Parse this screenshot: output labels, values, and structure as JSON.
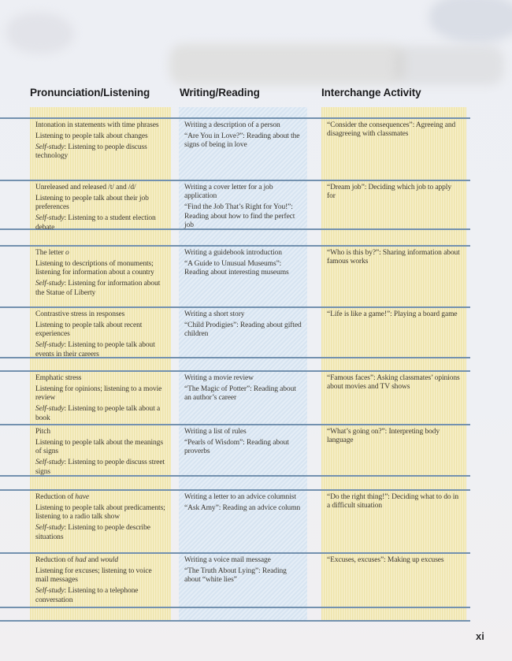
{
  "page": {
    "number_label": "xi"
  },
  "colors": {
    "rule_line": "#7391af",
    "band_yellow": "#f2e9bb",
    "band_blue": "#dde8f4",
    "background": "#eef0f4",
    "body_text": "#3b372f"
  },
  "columns": [
    {
      "header": "Pronunciation/Listening",
      "band": "yellow"
    },
    {
      "header": "Writing/Reading",
      "band": "blue"
    },
    {
      "header": "Interchange Activity",
      "band": "yellow"
    }
  ],
  "rows": [
    {
      "pron": [
        [
          {
            "t": "Intonation in statements with time phrases"
          }
        ],
        [
          {
            "t": "Listening to people talk about changes"
          }
        ],
        [
          {
            "t": "Self-study",
            "i": true
          },
          {
            "t": ": Listening to people discuss technology"
          }
        ]
      ],
      "wr": [
        [
          {
            "t": "Writing a description of a person"
          }
        ],
        [
          {
            "t": "“Are You in Love?”: Reading about the signs of being in love"
          }
        ]
      ],
      "ia": [
        [
          {
            "t": "“Consider the consequences”: Agreeing and disagreeing with classmates"
          }
        ]
      ]
    },
    {
      "pron": [
        [
          {
            "t": "Unreleased and released /t/ and /d/"
          }
        ],
        [
          {
            "t": "Listening to people talk about their job preferences"
          }
        ],
        [
          {
            "t": "Self-study",
            "i": true
          },
          {
            "t": ": Listening to a student election debate"
          }
        ]
      ],
      "wr": [
        [
          {
            "t": "Writing a cover letter for a job application"
          }
        ],
        [
          {
            "t": "“Find the Job That’s Right for You!”: Reading about how to find the perfect job"
          }
        ]
      ],
      "ia": [
        [
          {
            "t": "“Dream job”: Deciding which job to apply for"
          }
        ]
      ]
    },
    {
      "pron": [
        [
          {
            "t": "The letter "
          },
          {
            "t": "o",
            "i": true
          }
        ],
        [
          {
            "t": "Listening to descriptions of monuments; listening for information about a country"
          }
        ],
        [
          {
            "t": "Self-study",
            "i": true
          },
          {
            "t": ": Listening for information about the Statue of Liberty"
          }
        ]
      ],
      "wr": [
        [
          {
            "t": "Writing a guidebook introduction"
          }
        ],
        [
          {
            "t": "“A Guide to Unusual Museums”: Reading about interesting museums"
          }
        ]
      ],
      "ia": [
        [
          {
            "t": "“Who is this by?”: Sharing information about famous works"
          }
        ]
      ]
    },
    {
      "pron": [
        [
          {
            "t": "Contrastive stress in responses"
          }
        ],
        [
          {
            "t": "Listening to people talk about recent experiences"
          }
        ],
        [
          {
            "t": "Self-study",
            "i": true
          },
          {
            "t": ": Listening to people talk about events in their careers"
          }
        ]
      ],
      "wr": [
        [
          {
            "t": "Writing a short story"
          }
        ],
        [
          {
            "t": "“Child Prodigies”: Reading about gifted children"
          }
        ]
      ],
      "ia": [
        [
          {
            "t": "“Life is like a game!”: Playing a board game"
          }
        ]
      ]
    },
    {
      "pron": [
        [
          {
            "t": "Emphatic stress"
          }
        ],
        [
          {
            "t": "Listening for opinions; listening to a movie review"
          }
        ],
        [
          {
            "t": "Self-study",
            "i": true
          },
          {
            "t": ": Listening to people talk about a book"
          }
        ]
      ],
      "wr": [
        [
          {
            "t": "Writing a movie review"
          }
        ],
        [
          {
            "t": "“The Magic of Potter”: Reading about an author’s career"
          }
        ]
      ],
      "ia": [
        [
          {
            "t": "“Famous faces”: Asking classmates’ opinions about movies and TV shows"
          }
        ]
      ]
    },
    {
      "pron": [
        [
          {
            "t": "Pitch"
          }
        ],
        [
          {
            "t": "Listening to people talk about the meanings of signs"
          }
        ],
        [
          {
            "t": "Self-study",
            "i": true
          },
          {
            "t": ": Listening to people discuss street signs"
          }
        ]
      ],
      "wr": [
        [
          {
            "t": "Writing a list of rules"
          }
        ],
        [
          {
            "t": "“Pearls of Wisdom”: Reading about proverbs"
          }
        ]
      ],
      "ia": [
        [
          {
            "t": "“What’s going on?”: Interpreting body language"
          }
        ]
      ]
    },
    {
      "pron": [
        [
          {
            "t": "Reduction of "
          },
          {
            "t": "have",
            "i": true
          }
        ],
        [
          {
            "t": "Listening to people talk about predicaments; listening to a radio talk show"
          }
        ],
        [
          {
            "t": "Self-study",
            "i": true
          },
          {
            "t": ": Listening to people describe situations"
          }
        ]
      ],
      "wr": [
        [
          {
            "t": "Writing a letter to an advice columnist"
          }
        ],
        [
          {
            "t": "“Ask Amy”: Reading an advice column"
          }
        ]
      ],
      "ia": [
        [
          {
            "t": "“Do the right thing!”: Deciding what to do in a difficult situation"
          }
        ]
      ]
    },
    {
      "pron": [
        [
          {
            "t": "Reduction of "
          },
          {
            "t": "had",
            "i": true
          },
          {
            "t": " and "
          },
          {
            "t": "would",
            "i": true
          }
        ],
        [
          {
            "t": "Listening for excuses; listening to voice mail messages"
          }
        ],
        [
          {
            "t": "Self-study",
            "i": true
          },
          {
            "t": ": Listening to a telephone conversation"
          }
        ]
      ],
      "wr": [
        [
          {
            "t": "Writing a voice mail message"
          }
        ],
        [
          {
            "t": "“The Truth About Lying”: Reading about “white lies”"
          }
        ]
      ],
      "ia": [
        [
          {
            "t": "“Excuses, excuses”: Making up excuses"
          }
        ]
      ]
    }
  ]
}
